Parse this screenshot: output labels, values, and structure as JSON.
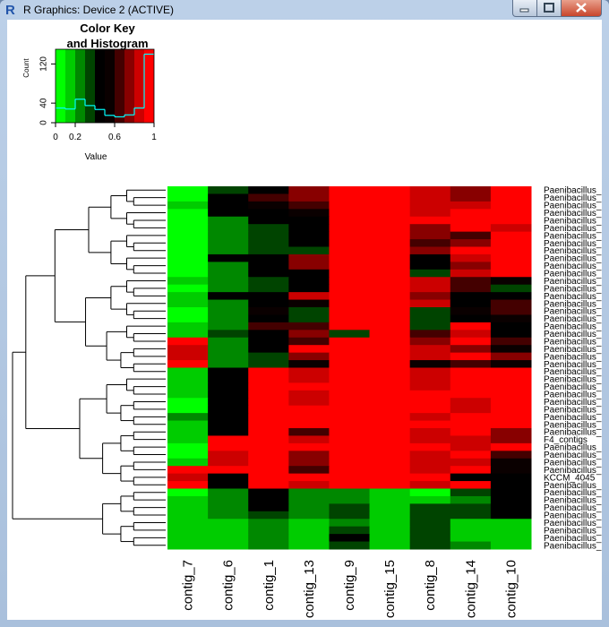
{
  "window": {
    "title": "R Graphics: Device 2 (ACTIVE)"
  },
  "chart_data": [
    {
      "type": "histogram",
      "title_lines": [
        "Color Key",
        "and Histogram"
      ],
      "xlabel": "Value",
      "ylabel": "Count",
      "bins": [
        0,
        0.1,
        0.2,
        0.3,
        0.4,
        0.5,
        0.6,
        0.7,
        0.8,
        0.9,
        1
      ],
      "counts": [
        30,
        28,
        48,
        35,
        27,
        15,
        12,
        16,
        30,
        140
      ],
      "colors": [
        "#00FF00",
        "#00CC00",
        "#008800",
        "#004400",
        "#000000",
        "#0a0000",
        "#440000",
        "#880000",
        "#CC0000",
        "#FF0000"
      ],
      "line_color": "#00FFFF",
      "xlim": [
        0,
        1
      ],
      "ylim": [
        0,
        150
      ],
      "xticks": [
        0,
        0.2,
        0.6,
        1
      ],
      "yticks": [
        0,
        40,
        120
      ]
    },
    {
      "type": "heatmap",
      "columns": [
        "contig_7",
        "contig_6",
        "contig_1",
        "contig_13",
        "contig_9",
        "contig_15",
        "contig_8",
        "contig_14",
        "contig_10"
      ],
      "rows": [
        "Paenibacillus_",
        "Paenibacillus_",
        "Paenibacillus_",
        "Paenibacillus_",
        "Paenibacillus_",
        "Paenibacillus_",
        "Paenibacillus_",
        "Paenibacillus_",
        "Paenibacillus_",
        "Paenibacillus_",
        "Paenibacillus_",
        "Paenibacillus_",
        "Paenibacillus_",
        "Paenibacillus_",
        "Paenibacillus_",
        "Paenibacillus_",
        "Paenibacillus_",
        "Paenibacillus_",
        "Paenibacillus_",
        "Paenibacillus_",
        "Paenibacillus_",
        "Paenibacillus_",
        "Paenibacillus_",
        "Paenibacillus_",
        "Paenibacillus_",
        "Paenibacillus_",
        "Paenibacillus_",
        "Paenibacillus_",
        "Paenibacillus_",
        "Paenibacillus_",
        "Paenibacillus_",
        "Paenibacillus_",
        "Paenibacillus_",
        "F4_contigs",
        "Paenibacillus_",
        "Paenibacillus_",
        "Paenibacillus_",
        "Paenibacillus_",
        "KCCM_4045",
        "Paenibacillus_",
        "Paenibacillus_",
        "Paenibacillus_",
        "Paenibacillus_",
        "Paenibacillus_",
        "Paenibacillus_",
        "Paenibacillus_",
        "Paenibacillus_",
        "Paenibacillus_"
      ],
      "values": [
        [
          0.05,
          0.35,
          0.45,
          0.75,
          0.95,
          0.95,
          0.85,
          0.75,
          0.95
        ],
        [
          0.05,
          0.45,
          0.65,
          0.75,
          0.95,
          0.95,
          0.85,
          0.75,
          0.95
        ],
        [
          0.15,
          0.45,
          0.55,
          0.65,
          0.95,
          0.95,
          0.85,
          0.85,
          0.95
        ],
        [
          0.05,
          0.45,
          0.45,
          0.55,
          0.95,
          0.95,
          0.85,
          0.95,
          0.95
        ],
        [
          0.05,
          0.25,
          0.45,
          0.45,
          0.95,
          0.95,
          0.95,
          0.95,
          0.95
        ],
        [
          0.05,
          0.25,
          0.35,
          0.45,
          0.95,
          0.95,
          0.75,
          0.95,
          0.85
        ],
        [
          0.05,
          0.25,
          0.35,
          0.45,
          0.95,
          0.95,
          0.75,
          0.65,
          0.95
        ],
        [
          0.05,
          0.25,
          0.35,
          0.45,
          0.95,
          0.95,
          0.65,
          0.75,
          0.95
        ],
        [
          0.05,
          0.25,
          0.35,
          0.35,
          0.95,
          0.95,
          0.75,
          0.95,
          0.95
        ],
        [
          0.05,
          0.45,
          0.45,
          0.75,
          0.95,
          0.95,
          0.45,
          0.85,
          0.95
        ],
        [
          0.05,
          0.25,
          0.45,
          0.75,
          0.95,
          0.95,
          0.45,
          0.75,
          0.95
        ],
        [
          0.05,
          0.25,
          0.45,
          0.45,
          0.95,
          0.95,
          0.35,
          0.85,
          0.95
        ],
        [
          0.15,
          0.25,
          0.35,
          0.45,
          0.95,
          0.95,
          0.85,
          0.65,
          0.55
        ],
        [
          0.05,
          0.25,
          0.35,
          0.45,
          0.95,
          0.95,
          0.85,
          0.65,
          0.35
        ],
        [
          0.15,
          0.45,
          0.45,
          0.85,
          0.95,
          0.95,
          0.75,
          0.45,
          0.45
        ],
        [
          0.15,
          0.25,
          0.45,
          0.55,
          0.95,
          0.95,
          0.85,
          0.45,
          0.65
        ],
        [
          0.05,
          0.25,
          0.55,
          0.35,
          0.95,
          0.95,
          0.35,
          0.55,
          0.65
        ],
        [
          0.05,
          0.25,
          0.45,
          0.35,
          0.95,
          0.95,
          0.35,
          0.45,
          0.55
        ],
        [
          0.15,
          0.25,
          0.65,
          0.65,
          0.95,
          0.95,
          0.35,
          0.95,
          0.45
        ],
        [
          0.15,
          0.35,
          0.45,
          0.75,
          0.35,
          0.95,
          0.65,
          0.85,
          0.45
        ],
        [
          0.95,
          0.25,
          0.45,
          0.65,
          0.95,
          0.95,
          0.75,
          0.95,
          0.65
        ],
        [
          0.85,
          0.25,
          0.45,
          0.95,
          0.95,
          0.95,
          0.85,
          0.75,
          0.55
        ],
        [
          0.85,
          0.25,
          0.35,
          0.75,
          0.95,
          0.95,
          0.85,
          0.95,
          0.75
        ],
        [
          0.95,
          0.25,
          0.35,
          0.55,
          0.95,
          0.95,
          0.55,
          0.65,
          0.55
        ],
        [
          0.15,
          0.45,
          0.95,
          0.85,
          0.95,
          0.95,
          0.85,
          0.95,
          0.95
        ],
        [
          0.15,
          0.45,
          0.95,
          0.85,
          0.95,
          0.95,
          0.85,
          0.95,
          0.95
        ],
        [
          0.15,
          0.45,
          0.95,
          0.95,
          0.95,
          0.95,
          0.85,
          0.95,
          0.95
        ],
        [
          0.15,
          0.45,
          0.95,
          0.85,
          0.95,
          0.95,
          0.95,
          0.95,
          0.95
        ],
        [
          0.05,
          0.45,
          0.95,
          0.85,
          0.95,
          0.95,
          0.95,
          0.85,
          0.95
        ],
        [
          0.05,
          0.45,
          0.95,
          0.95,
          0.95,
          0.95,
          0.95,
          0.85,
          0.95
        ],
        [
          0.25,
          0.45,
          0.95,
          0.95,
          0.95,
          0.95,
          0.85,
          0.95,
          0.95
        ],
        [
          0.15,
          0.45,
          0.95,
          0.95,
          0.95,
          0.95,
          0.95,
          0.95,
          0.95
        ],
        [
          0.15,
          0.45,
          0.95,
          0.65,
          0.95,
          0.95,
          0.85,
          0.95,
          0.75
        ],
        [
          0.15,
          0.95,
          0.95,
          0.85,
          0.95,
          0.95,
          0.85,
          0.85,
          0.75
        ],
        [
          0.05,
          0.95,
          0.95,
          0.95,
          0.95,
          0.95,
          0.95,
          0.85,
          0.95
        ],
        [
          0.05,
          0.85,
          0.95,
          0.75,
          0.95,
          0.95,
          0.85,
          0.95,
          0.65
        ],
        [
          0.15,
          0.85,
          0.95,
          0.75,
          0.95,
          0.95,
          0.85,
          0.85,
          0.55
        ],
        [
          0.95,
          0.95,
          0.95,
          0.65,
          0.95,
          0.95,
          0.85,
          0.95,
          0.55
        ],
        [
          0.85,
          0.45,
          0.95,
          0.95,
          0.95,
          0.95,
          0.95,
          0.45,
          0.45
        ],
        [
          0.95,
          0.45,
          0.95,
          0.85,
          0.95,
          0.95,
          0.85,
          0.95,
          0.45
        ],
        [
          0.05,
          0.25,
          0.45,
          0.25,
          0.25,
          0.15,
          0.05,
          0.35,
          0.45
        ],
        [
          0.15,
          0.25,
          0.45,
          0.25,
          0.25,
          0.15,
          0.15,
          0.25,
          0.45
        ],
        [
          0.15,
          0.25,
          0.45,
          0.25,
          0.35,
          0.15,
          0.35,
          0.35,
          0.45
        ],
        [
          0.15,
          0.25,
          0.35,
          0.25,
          0.35,
          0.15,
          0.35,
          0.35,
          0.45
        ],
        [
          0.15,
          0.15,
          0.25,
          0.15,
          0.25,
          0.15,
          0.35,
          0.15,
          0.15
        ],
        [
          0.15,
          0.15,
          0.25,
          0.15,
          0.35,
          0.15,
          0.35,
          0.15,
          0.15
        ],
        [
          0.15,
          0.15,
          0.25,
          0.15,
          0.45,
          0.15,
          0.35,
          0.15,
          0.15
        ],
        [
          0.15,
          0.15,
          0.25,
          0.15,
          0.35,
          0.15,
          0.35,
          0.25,
          0.15
        ]
      ]
    }
  ]
}
